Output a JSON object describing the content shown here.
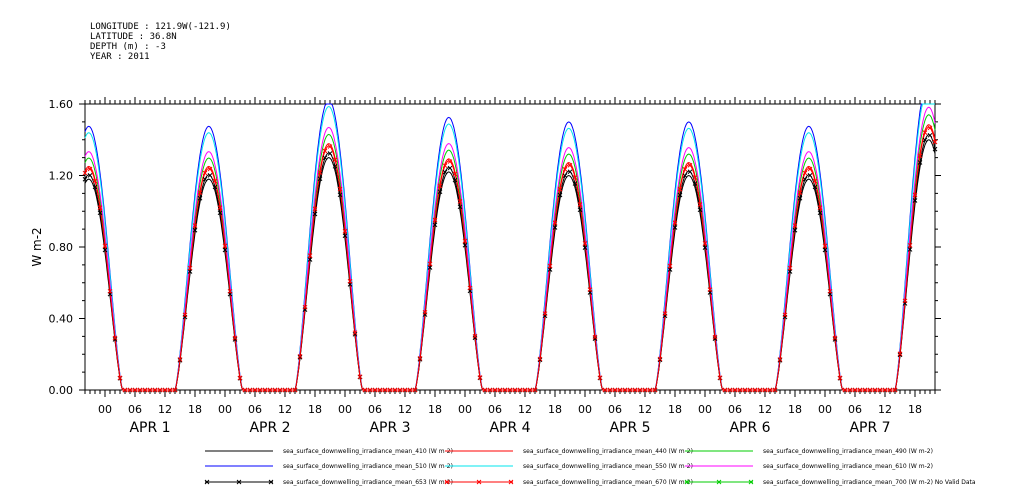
{
  "header": {
    "lines": [
      "LONGITUDE : 121.9W(-121.9)",
      "LATITUDE : 36.8N",
      "DEPTH (m) : -3",
      "YEAR : 2011"
    ]
  },
  "chart_data": {
    "type": "line",
    "ylabel": "W m-2",
    "ylim": [
      0,
      1.6
    ],
    "ytick_labels": [
      "0.00",
      "0.40",
      "0.80",
      "1.20",
      "1.60"
    ],
    "x_hours_range": [
      -4,
      166
    ],
    "x_hour_tick_labels": [
      "00",
      "06",
      "12",
      "18"
    ],
    "x_day_labels": [
      "APR   1",
      "APR   2",
      "APR   3",
      "APR   4",
      "APR   5",
      "APR   6",
      "APR   7"
    ],
    "daily_peak_410": [
      1.18,
      1.3,
      1.22,
      1.2,
      1.2,
      1.18,
      1.4
    ],
    "series": [
      {
        "name": "sea_surface_downwelling_irradiance_mean_410 (W m-2)",
        "color": "#000000",
        "scale": 1.0,
        "marker": "none"
      },
      {
        "name": "sea_surface_downwelling_irradiance_mean_440 (W m-2)",
        "color": "#ff0000",
        "scale": 1.06,
        "marker": "none"
      },
      {
        "name": "sea_surface_downwelling_irradiance_mean_490 (W m-2)",
        "color": "#00cc00",
        "scale": 1.1,
        "marker": "none"
      },
      {
        "name": "sea_surface_downwelling_irradiance_mean_510 (W m-2)",
        "color": "#0000ff",
        "scale": 1.25,
        "marker": "none"
      },
      {
        "name": "sea_surface_downwelling_irradiance_mean_550 (W m-2)",
        "color": "#00e5ee",
        "scale": 1.22,
        "marker": "none"
      },
      {
        "name": "sea_surface_downwelling_irradiance_mean_610 (W m-2)",
        "color": "#ff00ff",
        "scale": 1.13,
        "marker": "none"
      },
      {
        "name": "sea_surface_downwelling_irradiance_mean_653 (W m-2)",
        "color": "#000000",
        "scale": 1.02,
        "marker": "x"
      },
      {
        "name": "sea_surface_downwelling_irradiance_mean_670 (W m-2)",
        "color": "#ff0000",
        "scale": 1.05,
        "marker": "x"
      },
      {
        "name": "sea_surface_downwelling_irradiance_mean_700 (W m-2) No Valid Data",
        "color": "#00cc00",
        "scale": 0,
        "marker": "x"
      }
    ]
  }
}
